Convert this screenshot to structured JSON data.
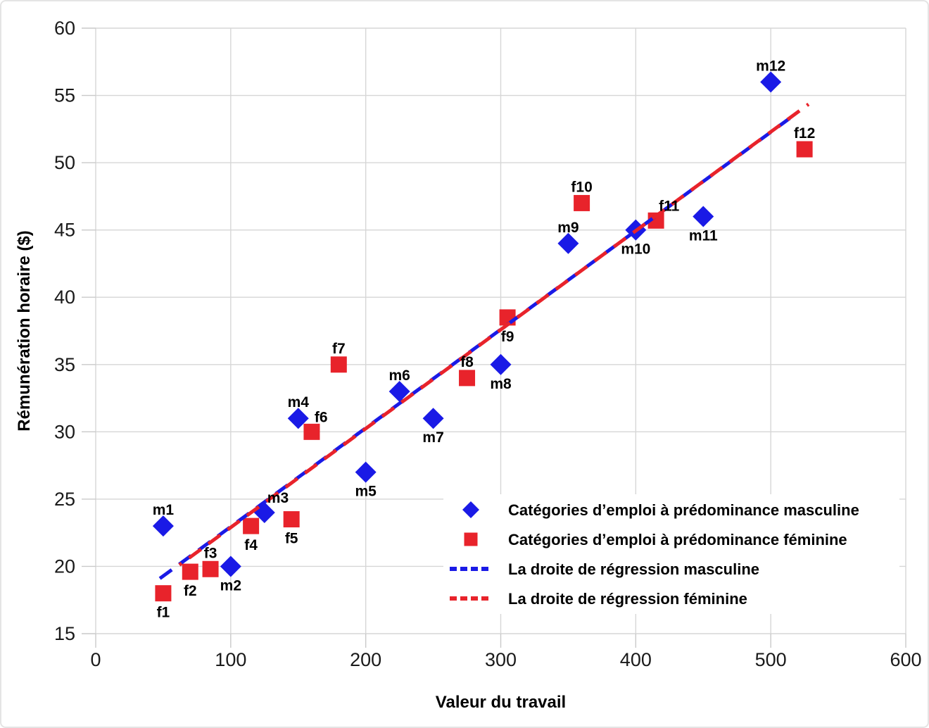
{
  "chart_data": {
    "type": "scatter",
    "title": "",
    "xlabel": "Valeur du travail",
    "ylabel": "Rémunération horaire ($)",
    "xlim": [
      0,
      600
    ],
    "ylim": [
      15,
      60
    ],
    "xticks": [
      0,
      100,
      200,
      300,
      400,
      500,
      600
    ],
    "yticks": [
      15,
      20,
      25,
      30,
      35,
      40,
      45,
      50,
      55,
      60
    ],
    "grid": true,
    "colors": {
      "masculine": "#1a1ae6",
      "feminine": "#e8232b",
      "grid": "#d6d6d6",
      "axis": "#c9c9c9",
      "text": "#1a1a1a",
      "background": "#ffffff"
    },
    "series": [
      {
        "name": "Catégories d’emploi à prédominance masculine",
        "marker": "diamond",
        "color": "#1a1ae6",
        "points": [
          {
            "label": "m1",
            "x": 50,
            "y": 23,
            "label_pos": "above"
          },
          {
            "label": "m2",
            "x": 100,
            "y": 20,
            "label_pos": "below"
          },
          {
            "label": "m3",
            "x": 125,
            "y": 24,
            "label_pos": "above-right"
          },
          {
            "label": "m4",
            "x": 150,
            "y": 31,
            "label_pos": "above"
          },
          {
            "label": "m5",
            "x": 200,
            "y": 27,
            "label_pos": "below"
          },
          {
            "label": "m6",
            "x": 225,
            "y": 33,
            "label_pos": "above"
          },
          {
            "label": "m7",
            "x": 250,
            "y": 31,
            "label_pos": "below"
          },
          {
            "label": "m8",
            "x": 300,
            "y": 35,
            "label_pos": "below"
          },
          {
            "label": "m9",
            "x": 350,
            "y": 44,
            "label_pos": "above"
          },
          {
            "label": "m10",
            "x": 400,
            "y": 45,
            "label_pos": "below"
          },
          {
            "label": "m11",
            "x": 450,
            "y": 46,
            "label_pos": "below"
          },
          {
            "label": "m12",
            "x": 500,
            "y": 56,
            "label_pos": "above"
          }
        ]
      },
      {
        "name": "Catégories d’emploi à prédominance féminine",
        "marker": "square",
        "color": "#e8232b",
        "points": [
          {
            "label": "f1",
            "x": 50,
            "y": 18,
            "label_pos": "below"
          },
          {
            "label": "f2",
            "x": 70,
            "y": 19.6,
            "label_pos": "below"
          },
          {
            "label": "f3",
            "x": 85,
            "y": 19.8,
            "label_pos": "above"
          },
          {
            "label": "f4",
            "x": 115,
            "y": 23,
            "label_pos": "below"
          },
          {
            "label": "f5",
            "x": 145,
            "y": 23.5,
            "label_pos": "below"
          },
          {
            "label": "f6",
            "x": 160,
            "y": 30,
            "label_pos": "above-right"
          },
          {
            "label": "f7",
            "x": 180,
            "y": 35,
            "label_pos": "above"
          },
          {
            "label": "f8",
            "x": 275,
            "y": 34,
            "label_pos": "above"
          },
          {
            "label": "f9",
            "x": 305,
            "y": 38.5,
            "label_pos": "below"
          },
          {
            "label": "f10",
            "x": 360,
            "y": 47,
            "label_pos": "above"
          },
          {
            "label": "f11",
            "x": 415,
            "y": 45.7,
            "label_pos": "above-right"
          },
          {
            "label": "f12",
            "x": 525,
            "y": 51,
            "label_pos": "above"
          }
        ]
      }
    ],
    "regression_lines": [
      {
        "name": "La droite de régression masculine",
        "color": "#1a1ae6",
        "x1": 47.5,
        "y1": 19.1,
        "x2": 514,
        "y2": 53.3,
        "dash_offset": 0
      },
      {
        "name": "La droite de régression féminine",
        "color": "#e8232b",
        "x1": 62,
        "y1": 20.1,
        "x2": 528,
        "y2": 54.35,
        "dash_offset": 17
      }
    ],
    "legend": {
      "position": "inside-bottom-right",
      "entries": [
        {
          "label": "Catégories d’emploi à prédominance masculine",
          "swatch": "diamond",
          "color": "#1a1ae6"
        },
        {
          "label": "Catégories d’emploi à prédominance féminine",
          "swatch": "square",
          "color": "#e8232b"
        },
        {
          "label": "La droite de régression masculine",
          "swatch": "dashes",
          "color": "#1a1ae6"
        },
        {
          "label": "La droite de régression féminine",
          "swatch": "dashes",
          "color": "#e8232b"
        }
      ]
    }
  }
}
